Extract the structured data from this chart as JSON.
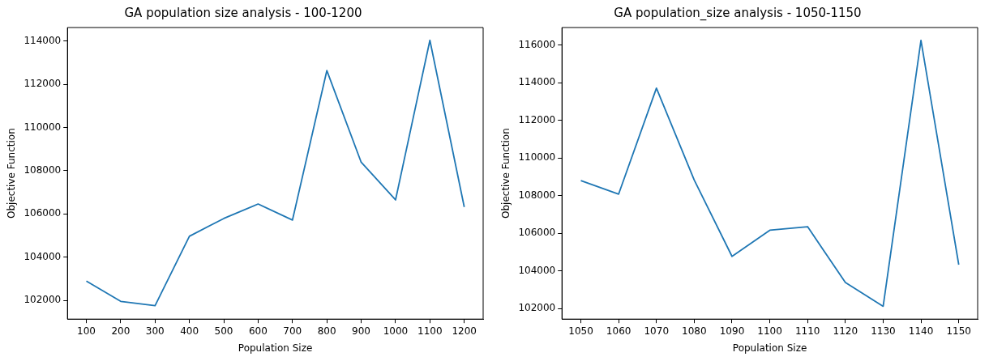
{
  "chart_data": [
    {
      "type": "line",
      "title": "GA population size analysis - 100-1200",
      "xlabel": "Population Size",
      "ylabel": "Objective Function",
      "x": [
        100,
        200,
        300,
        400,
        500,
        600,
        700,
        800,
        900,
        1000,
        1100,
        1200
      ],
      "series": [
        {
          "color": "#1f77b4",
          "values": [
            102900,
            101960,
            101760,
            104970,
            105790,
            106460,
            105720,
            112630,
            108390,
            106650,
            114030,
            106320
          ]
        }
      ],
      "xlim": [
        45,
        1255
      ],
      "xticks": [
        100,
        200,
        300,
        400,
        500,
        600,
        700,
        800,
        900,
        1000,
        1100,
        1200
      ],
      "ylim": [
        101140,
        114620
      ],
      "yticks": [
        102000,
        104000,
        106000,
        108000,
        110000,
        112000,
        114000
      ],
      "grid": false,
      "legend": false,
      "marker": "none",
      "line_style": "solid"
    },
    {
      "type": "line",
      "title": "GA population_size analysis - 1050-1150",
      "xlabel": "Population Size",
      "ylabel": "Objective Function",
      "x": [
        1050,
        1060,
        1070,
        1080,
        1090,
        1100,
        1110,
        1120,
        1130,
        1140,
        1150
      ],
      "series": [
        {
          "color": "#1f77b4",
          "values": [
            108800,
            108080,
            113710,
            108830,
            104770,
            106160,
            106350,
            103380,
            102120,
            116250,
            104330
          ]
        }
      ],
      "xlim": [
        1045,
        1155
      ],
      "xticks": [
        1050,
        1060,
        1070,
        1080,
        1090,
        1100,
        1110,
        1120,
        1130,
        1140,
        1150
      ],
      "ylim": [
        101440,
        116930
      ],
      "yticks": [
        102000,
        104000,
        106000,
        108000,
        110000,
        112000,
        114000,
        116000
      ],
      "grid": false,
      "legend": false,
      "marker": "none",
      "line_style": "solid"
    }
  ]
}
